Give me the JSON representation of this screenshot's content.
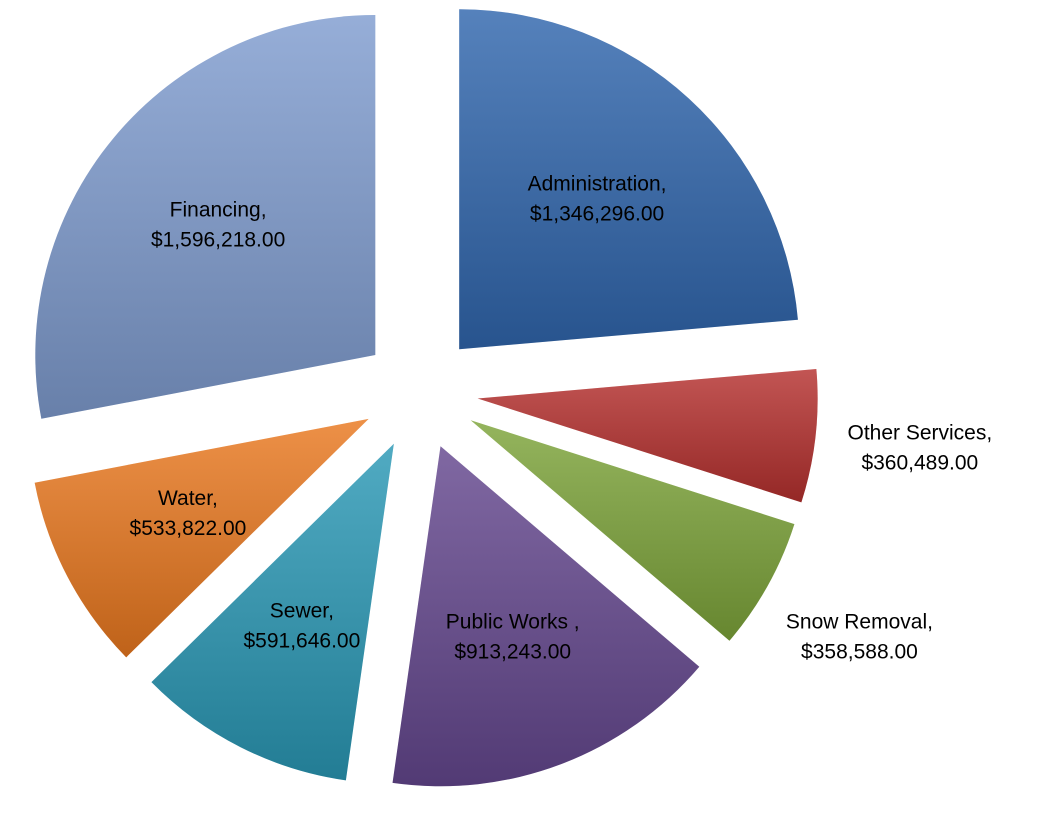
{
  "chart_data": {
    "type": "pie",
    "categories": [
      "Administration,",
      "Other Services,",
      "Snow Removal,",
      "Public Works ,",
      "Sewer,",
      "Water,",
      "Financing,"
    ],
    "values": [
      1346296,
      360489,
      358588,
      913243,
      591646,
      533822,
      1596218
    ],
    "value_labels": [
      "$1,346,296.00",
      "$360,489.00",
      "$358,588.00",
      "$913,243.00",
      "$591,646.00",
      "$533,822.00",
      "$1,596,218.00"
    ],
    "colors": [
      "#3066ad",
      "#b5302e",
      "#7da43a",
      "#64478e",
      "#2a98b5",
      "#e9781f",
      "#7f9ccf"
    ]
  }
}
